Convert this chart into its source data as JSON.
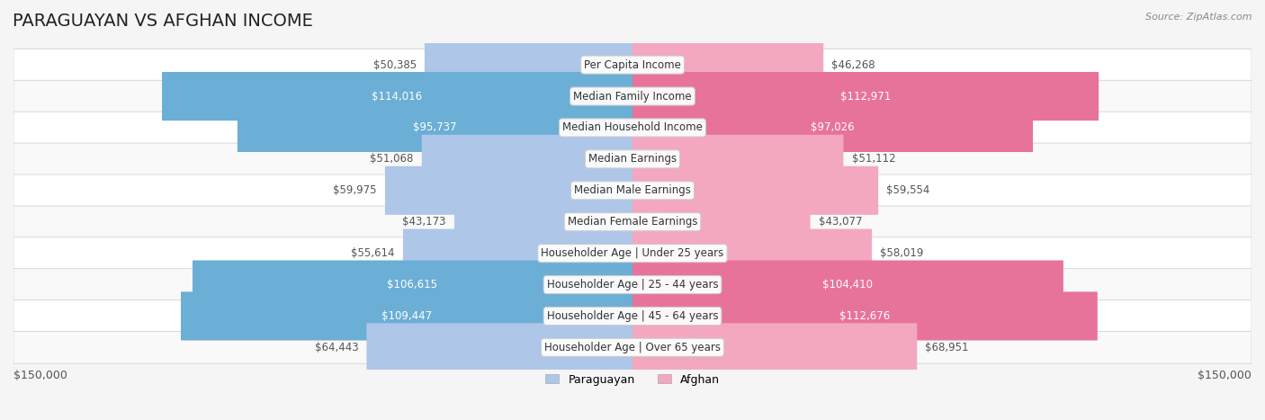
{
  "title": "PARAGUAYAN VS AFGHAN INCOME",
  "source": "Source: ZipAtlas.com",
  "categories": [
    "Per Capita Income",
    "Median Family Income",
    "Median Household Income",
    "Median Earnings",
    "Median Male Earnings",
    "Median Female Earnings",
    "Householder Age | Under 25 years",
    "Householder Age | 25 - 44 years",
    "Householder Age | 45 - 64 years",
    "Householder Age | Over 65 years"
  ],
  "paraguayan_values": [
    50385,
    114016,
    95737,
    51068,
    59975,
    43173,
    55614,
    106615,
    109447,
    64443
  ],
  "afghan_values": [
    46268,
    112971,
    97026,
    51112,
    59554,
    43077,
    58019,
    104410,
    112676,
    68951
  ],
  "paraguayan_labels": [
    "$50,385",
    "$114,016",
    "$95,737",
    "$51,068",
    "$59,975",
    "$43,173",
    "$55,614",
    "$106,615",
    "$109,447",
    "$64,443"
  ],
  "afghan_labels": [
    "$46,268",
    "$112,971",
    "$97,026",
    "$51,112",
    "$59,554",
    "$43,077",
    "$58,019",
    "$104,410",
    "$112,676",
    "$68,951"
  ],
  "max_value": 150000,
  "paraguayan_color_light": "#aec6e8",
  "paraguayan_color_dark": "#6baed6",
  "afghan_color_light": "#f4a8c0",
  "afghan_color_dark": "#e8739a",
  "label_color_dark": "#ffffff",
  "label_color_light": "#555555",
  "threshold": 90000,
  "background_color": "#f5f5f5",
  "row_bg_color": "#ffffff",
  "row_alt_color": "#f9f9f9",
  "bar_height": 0.55,
  "title_fontsize": 14,
  "label_fontsize": 8.5,
  "category_fontsize": 8.5,
  "axis_label": "$150,000",
  "legend_paraguayan": "Paraguayan",
  "legend_afghan": "Afghan"
}
